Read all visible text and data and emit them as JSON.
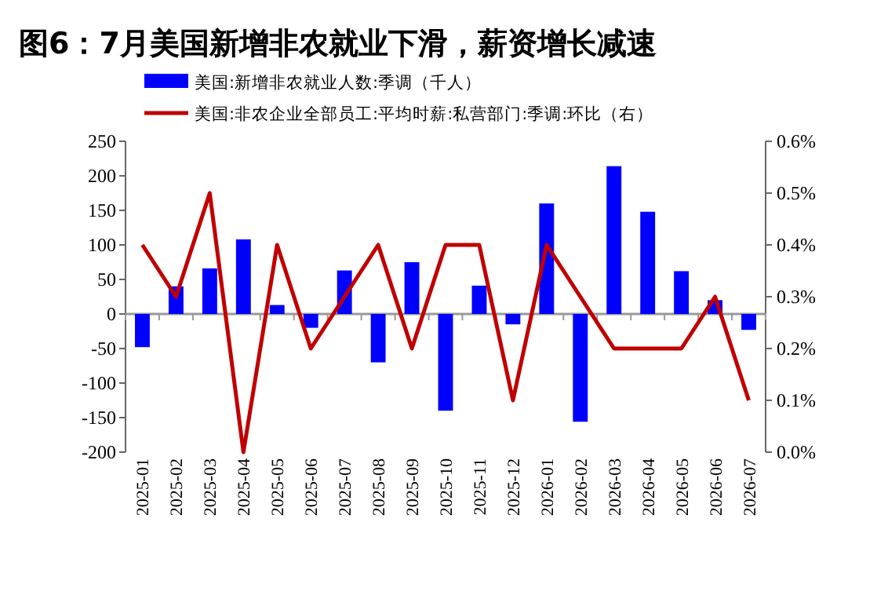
{
  "chart_data": {
    "type": "bar",
    "title": "图6：7月美国新增非农就业下滑，薪资增长减速",
    "categories": [
      "2025-01",
      "2025-02",
      "2025-03",
      "2025-04",
      "2025-05",
      "2025-06",
      "2025-07",
      "2025-08",
      "2025-09",
      "2025-10",
      "2025-11",
      "2025-12",
      "2026-01",
      "2026-02",
      "2026-03",
      "2026-04",
      "2026-05",
      "2026-06",
      "2026-07"
    ],
    "series": [
      {
        "name": "美国:新增非农就业人数:季调（千人）",
        "color": "#0000ff",
        "values": [
          -48,
          40,
          66,
          108,
          13,
          -20,
          63,
          -70,
          75,
          -140,
          41,
          -15,
          160,
          -156,
          214,
          148,
          62,
          20,
          -23
        ]
      },
      {
        "name": "美国:非农企业全部员工:平均时薪:私营部门:季调:环比（右）",
        "type": "line",
        "axis": "y2",
        "color": "#c00000",
        "values": [
          0.4,
          0.3,
          0.5,
          0.0,
          0.4,
          0.2,
          0.3,
          0.4,
          0.2,
          0.4,
          0.4,
          0.1,
          0.4,
          0.3,
          0.2,
          0.2,
          0.2,
          0.3,
          0.1
        ]
      }
    ],
    "ylim": [
      -200,
      250
    ],
    "yticks": [
      -200,
      -150,
      -100,
      -50,
      0,
      50,
      100,
      150,
      200,
      250
    ],
    "y2lim": [
      0,
      0.6
    ],
    "y2ticks": [
      {
        "value": 0,
        "label": "0.0%"
      },
      {
        "value": 0.1,
        "label": "0.1%"
      },
      {
        "value": 0.2,
        "label": "0.2%"
      },
      {
        "value": 0.3,
        "label": "0.3%"
      },
      {
        "value": 0.4,
        "label": "0.4%"
      },
      {
        "value": 0.5,
        "label": "0.5%"
      },
      {
        "value": 0.6,
        "label": "0.6%"
      }
    ],
    "legend": "top"
  }
}
